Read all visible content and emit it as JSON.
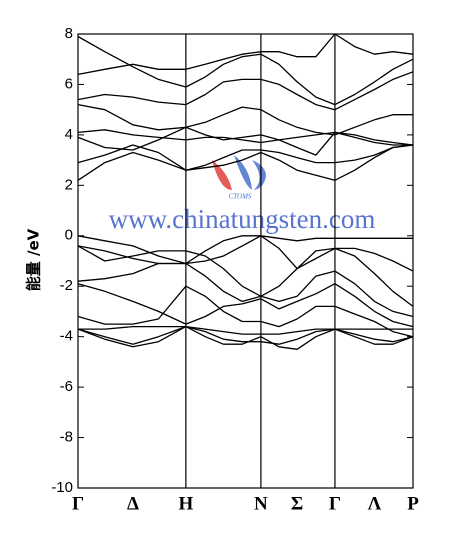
{
  "chart_data": {
    "type": "line",
    "y_label": "能量 /eV",
    "x": [
      0,
      0.08,
      0.164,
      0.24,
      0.322,
      0.38,
      0.434,
      0.49,
      0.546,
      0.6,
      0.654,
      0.71,
      0.767,
      0.826,
      0.885,
      0.94,
      1.0
    ],
    "xlim": [
      0,
      1
    ],
    "xticks": [
      {
        "value": 0,
        "label": "Γ"
      },
      {
        "value": 0.164,
        "label": "Δ"
      },
      {
        "value": 0.322,
        "label": "H"
      },
      {
        "value": 0.546,
        "label": "N"
      },
      {
        "value": 0.654,
        "label": "Σ"
      },
      {
        "value": 0.767,
        "label": "Γ"
      },
      {
        "value": 0.885,
        "label": "Λ"
      },
      {
        "value": 1.0,
        "label": "P"
      }
    ],
    "vlines": [
      0.322,
      0.546,
      0.767
    ],
    "ylim": [
      -10,
      8
    ],
    "yticks": [
      -10,
      -8,
      -6,
      -4,
      -2,
      0,
      2,
      4,
      6,
      8
    ],
    "series": [
      {
        "color": "#000000",
        "values": [
          7.9,
          7.3,
          6.7,
          6.2,
          5.9,
          6.3,
          6.8,
          7.1,
          7.2,
          6.8,
          6.1,
          5.5,
          5.2,
          5.6,
          6.1,
          6.6,
          7.0
        ]
      },
      {
        "color": "#000000",
        "values": [
          6.4,
          6.6,
          6.8,
          6.6,
          6.6,
          6.8,
          7.0,
          7.2,
          7.3,
          7.3,
          7.1,
          7.1,
          8.0,
          7.5,
          7.2,
          7.3,
          7.2
        ]
      },
      {
        "color": "#000000",
        "values": [
          5.4,
          5.6,
          5.5,
          5.3,
          5.2,
          5.6,
          6.1,
          6.2,
          6.2,
          6.0,
          5.6,
          5.2,
          5.0,
          5.4,
          5.8,
          6.2,
          6.5
        ]
      },
      {
        "color": "#000000",
        "values": [
          5.2,
          5.0,
          4.4,
          4.2,
          4.3,
          4.5,
          4.8,
          5.1,
          5.0,
          4.6,
          4.3,
          4.1,
          4.0,
          4.3,
          4.6,
          4.8,
          4.8
        ]
      },
      {
        "color": "#000000",
        "values": [
          4.1,
          4.2,
          4.0,
          3.9,
          3.8,
          3.9,
          3.9,
          3.8,
          3.7,
          3.8,
          3.9,
          4.0,
          4.1,
          3.9,
          3.7,
          3.6,
          3.6
        ]
      },
      {
        "color": "#000000",
        "values": [
          3.9,
          3.5,
          3.4,
          3.8,
          4.3,
          4.0,
          3.8,
          3.9,
          4.0,
          3.8,
          3.5,
          3.2,
          4.1,
          4.0,
          3.8,
          3.7,
          3.6
        ]
      },
      {
        "color": "#000000",
        "values": [
          2.9,
          3.2,
          3.6,
          3.3,
          2.6,
          2.8,
          3.1,
          3.4,
          3.4,
          3.3,
          3.1,
          2.9,
          2.9,
          3.0,
          3.2,
          3.5,
          3.6
        ]
      },
      {
        "color": "#000000",
        "values": [
          2.2,
          2.9,
          3.3,
          3.0,
          2.6,
          2.7,
          2.8,
          3.0,
          3.3,
          3.0,
          2.6,
          2.4,
          2.2,
          2.6,
          3.1,
          3.5,
          3.6
        ]
      },
      {
        "color": "#000000",
        "values": [
          0.0,
          -0.2,
          -0.4,
          -0.8,
          -1.1,
          -0.6,
          -0.2,
          0.0,
          0.0,
          -0.1,
          -0.2,
          -0.1,
          -0.1,
          -0.1,
          -0.1,
          -0.1,
          -0.1
        ]
      },
      {
        "color": "#000000",
        "values": [
          -0.4,
          -0.6,
          -0.9,
          -1.1,
          -1.1,
          -1.0,
          -0.8,
          -0.4,
          0.0,
          -0.5,
          -1.3,
          -0.9,
          -0.5,
          -0.5,
          -0.7,
          -1.0,
          -1.4
        ]
      },
      {
        "color": "#000000",
        "values": [
          -0.4,
          -1.0,
          -0.8,
          -0.6,
          -0.6,
          -0.8,
          -1.3,
          -2.0,
          -2.4,
          -2.0,
          -1.3,
          -0.6,
          -0.5,
          -0.8,
          -1.5,
          -2.2,
          -2.8
        ]
      },
      {
        "color": "#000000",
        "values": [
          -1.8,
          -1.7,
          -1.5,
          -1.1,
          -1.1,
          -1.6,
          -2.2,
          -2.6,
          -2.4,
          -2.6,
          -2.4,
          -1.6,
          -1.4,
          -1.9,
          -2.6,
          -3.0,
          -3.2
        ]
      },
      {
        "color": "#000000",
        "values": [
          -1.9,
          -2.2,
          -2.6,
          -3.0,
          -3.5,
          -3.2,
          -2.8,
          -2.7,
          -2.5,
          -2.9,
          -2.6,
          -2.3,
          -1.9,
          -2.4,
          -3.0,
          -3.4,
          -3.6
        ]
      },
      {
        "color": "#000000",
        "values": [
          -3.2,
          -3.5,
          -3.5,
          -3.3,
          -2.0,
          -2.4,
          -3.0,
          -3.4,
          -3.4,
          -3.6,
          -3.3,
          -2.8,
          -2.8,
          -3.1,
          -3.4,
          -3.8,
          -4.0
        ]
      },
      {
        "color": "#000000",
        "values": [
          -3.7,
          -3.7,
          -3.6,
          -3.6,
          -3.6,
          -3.7,
          -3.8,
          -3.9,
          -3.9,
          -3.9,
          -3.8,
          -3.7,
          -3.7,
          -3.7,
          -3.7,
          -3.7,
          -3.7
        ]
      },
      {
        "color": "#000000",
        "values": [
          -3.7,
          -4.0,
          -4.3,
          -4.0,
          -3.6,
          -3.8,
          -4.1,
          -4.2,
          -4.2,
          -4.3,
          -4.1,
          -3.8,
          -3.7,
          -3.9,
          -4.1,
          -4.2,
          -4.0
        ]
      },
      {
        "color": "#000000",
        "values": [
          -3.7,
          -4.1,
          -4.4,
          -4.2,
          -3.6,
          -4.0,
          -4.3,
          -4.3,
          -4.0,
          -4.4,
          -4.5,
          -4.0,
          -3.7,
          -4.0,
          -4.3,
          -4.3,
          -4.0
        ]
      }
    ],
    "watermark": {
      "text": "www.chinatungsten.com",
      "logo_text": "CTOMS"
    }
  }
}
